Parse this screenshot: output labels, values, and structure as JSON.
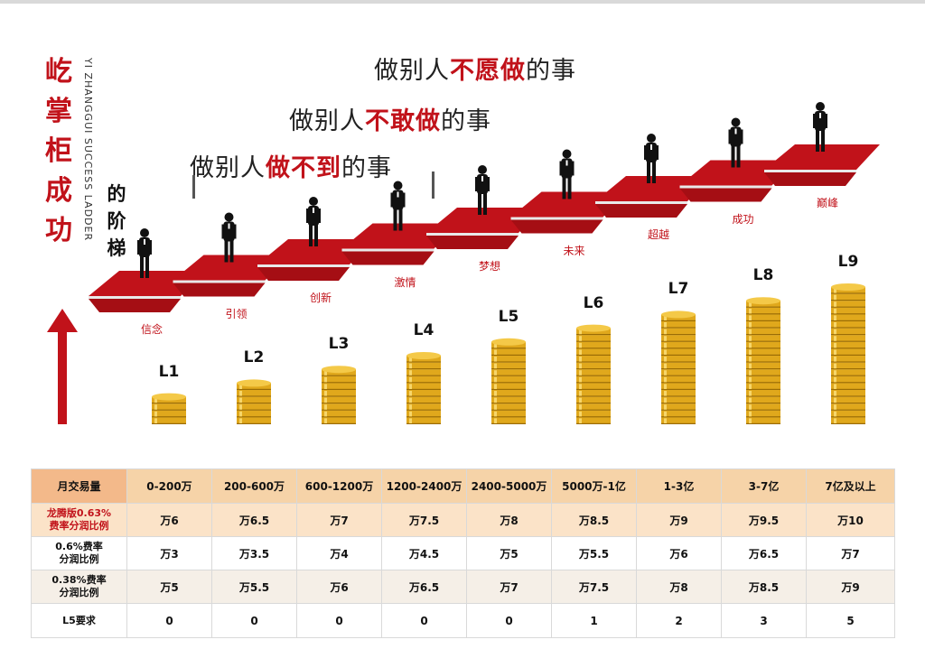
{
  "title": {
    "chars": [
      "屹",
      "掌",
      "柜",
      "成",
      "功"
    ],
    "english": "YI ZHANGGUI SUCCESS LADDER",
    "suffix_chars": [
      "的",
      "阶",
      "梯"
    ]
  },
  "headlines": [
    {
      "pre": "做别人",
      "hl": "不愿做",
      "post": "的事"
    },
    {
      "pre": "做别人",
      "hl": "不敢做",
      "post": "的事"
    },
    {
      "pre": "做别人",
      "hl": "做不到",
      "post": "的事"
    }
  ],
  "steps": [
    "信念",
    "引领",
    "创新",
    "激情",
    "梦想",
    "未来",
    "超越",
    "成功",
    "巅峰"
  ],
  "levels": [
    "L1",
    "L2",
    "L3",
    "L4",
    "L5",
    "L6",
    "L7",
    "L8",
    "L9"
  ],
  "coin_stack_heights": [
    4,
    6,
    8,
    10,
    12,
    14,
    16,
    18,
    20
  ],
  "colors": {
    "brand_red": "#c1121a",
    "coin_gold": "#e0a81c",
    "table_header": "#f6d3a8"
  },
  "table": {
    "columns": [
      "月交易量",
      "0-200万",
      "200-600万",
      "600-1200万",
      "1200-2400万",
      "2400-5000万",
      "5000万-1亿",
      "1-3亿",
      "3-7亿",
      "7亿及以上"
    ],
    "rows": [
      {
        "label": [
          "龙腾版0.63%",
          "费率分润比例"
        ],
        "values": [
          "万6",
          "万6.5",
          "万7",
          "万7.5",
          "万8",
          "万8.5",
          "万9",
          "万9.5",
          "万10"
        ]
      },
      {
        "label": [
          "0.6%费率",
          "分润比例"
        ],
        "values": [
          "万3",
          "万3.5",
          "万4",
          "万4.5",
          "万5",
          "万5.5",
          "万6",
          "万6.5",
          "万7"
        ]
      },
      {
        "label": [
          "0.38%费率",
          "分润比例"
        ],
        "values": [
          "万5",
          "万5.5",
          "万6",
          "万6.5",
          "万7",
          "万7.5",
          "万8",
          "万8.5",
          "万9"
        ]
      },
      {
        "label": [
          "L5要求"
        ],
        "values": [
          "0",
          "0",
          "0",
          "0",
          "0",
          "1",
          "2",
          "3",
          "5"
        ]
      }
    ]
  }
}
